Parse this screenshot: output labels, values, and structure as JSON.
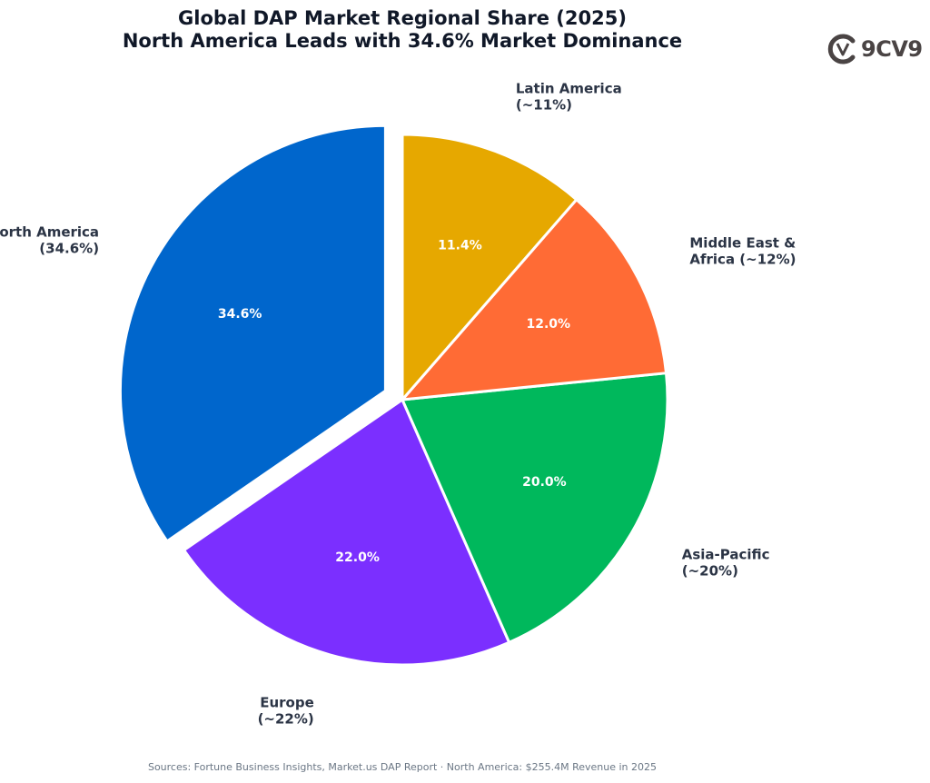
{
  "title_line1": "Global DAP Market Regional Share (2025)",
  "title_line2": "North America Leads with 34.6% Market Dominance",
  "logo": {
    "text": "9CV9",
    "icon": "9cv9-logo-icon"
  },
  "footer": "Sources: Fortune Business Insights, Market.us DAP Report · North America: $255.4M Revenue in 2025",
  "chart_data": {
    "type": "pie",
    "start_angle_deg": 90,
    "direction": "counterclockwise",
    "exploded": [
      "North America"
    ],
    "slices": [
      {
        "name": "North America",
        "outer_label": [
          "North America",
          "(34.6%)"
        ],
        "value": 34.6,
        "value_label": "34.6%",
        "color": "#0066cc"
      },
      {
        "name": "Europe",
        "outer_label": [
          "Europe",
          "(~22%)"
        ],
        "value": 22.0,
        "value_label": "22.0%",
        "color": "#7b2fff"
      },
      {
        "name": "Asia-Pacific",
        "outer_label": [
          "Asia-Pacific",
          "(~20%)"
        ],
        "value": 20.0,
        "value_label": "20.0%",
        "color": "#00b85c"
      },
      {
        "name": "Middle East & Africa",
        "outer_label": [
          "Middle East &",
          "Africa (~12%)"
        ],
        "value": 12.0,
        "value_label": "12.0%",
        "color": "#ff6b35"
      },
      {
        "name": "Latin America",
        "outer_label": [
          "Latin America",
          "(~11%)"
        ],
        "value": 11.4,
        "value_label": "11.4%",
        "color": "#e6a800"
      }
    ]
  }
}
